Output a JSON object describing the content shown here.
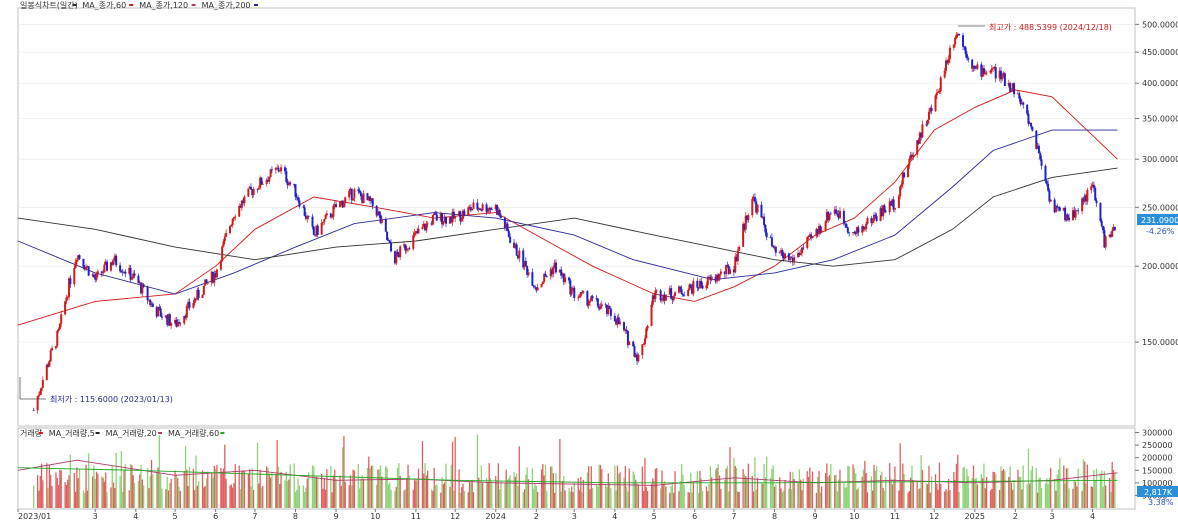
{
  "main_legend": [
    {
      "label": "일봉식차트(일간)",
      "color": "#333333"
    },
    {
      "label": "MA_종가,60",
      "color": "#d11a1a"
    },
    {
      "label": "MA_종가,120",
      "color": "#b03a6a"
    },
    {
      "label": "MA_종가,200",
      "color": "#2a2a99"
    }
  ],
  "volume_legend": [
    {
      "label": "거래량",
      "color": "#d11a1a"
    },
    {
      "label": "MA_거래량,5",
      "color": "#222222"
    },
    {
      "label": "MA_거래량,20",
      "color": "#b03a6a"
    },
    {
      "label": "MA_거래량,60",
      "color": "#22aa22"
    }
  ],
  "annotations": {
    "high_label": "최고가 : 488.5399 (2024/12/18)",
    "low_label": "최저가 : 115.6000 (2023/01/13)"
  },
  "price_badge": {
    "price": "231.0900",
    "change": "-4.26%",
    "bg": "#2a8fd8"
  },
  "volume_badge": {
    "value": "2,817K",
    "pct": "3.38%",
    "bg": "#2a8fd8"
  },
  "colors": {
    "up": "#d11a1a",
    "down": "#2222cc",
    "ma60": "#d11a1a",
    "ma120": "#2a2a99",
    "ma200": "#333333",
    "vol_up": "#e06060",
    "vol_down": "#8fd27a",
    "grid": "#e8e8e8"
  },
  "chart_data": {
    "type": "line",
    "y_scale": "log",
    "price_axis_labels": [
      "500.0000",
      "450.0000",
      "400.0000",
      "350.0000",
      "300.0000",
      "250.0000",
      "200.0000",
      "150.0000"
    ],
    "price_axis_values": [
      500,
      450,
      400,
      350,
      300,
      250,
      200,
      150
    ],
    "ylim": [
      110,
      520
    ],
    "volume_axis_labels": [
      "300000",
      "250000",
      "200000",
      "150000",
      "100000",
      "50000"
    ],
    "volume_axis_values": [
      300000,
      250000,
      200000,
      150000,
      100000,
      50000
    ],
    "volume_ylim": [
      0,
      310000
    ],
    "time_axis_labels": [
      "2023/01",
      "3",
      "4",
      "5",
      "6",
      "7",
      "8",
      "9",
      "10",
      "11",
      "12",
      "2024",
      "2",
      "3",
      "4",
      "5",
      "6",
      "7",
      "8",
      "9",
      "10",
      "11",
      "12",
      "2025",
      "2",
      "3",
      "4"
    ],
    "xlim": [
      "2023-01-01",
      "2025-04-25"
    ],
    "series": [
      {
        "name": "일봉식차트(일간)",
        "dates": [
          "2023-01-13",
          "2023-02-01",
          "2023-02-15",
          "2023-03-01",
          "2023-03-15",
          "2023-04-01",
          "2023-04-15",
          "2023-05-01",
          "2023-05-15",
          "2023-06-01",
          "2023-06-15",
          "2023-07-01",
          "2023-07-20",
          "2023-08-01",
          "2023-08-15",
          "2023-09-01",
          "2023-09-15",
          "2023-10-01",
          "2023-10-15",
          "2023-11-01",
          "2023-11-15",
          "2023-12-01",
          "2023-12-15",
          "2024-01-01",
          "2024-01-15",
          "2024-02-01",
          "2024-02-15",
          "2024-03-01",
          "2024-03-15",
          "2024-04-01",
          "2024-04-20",
          "2024-05-01",
          "2024-05-15",
          "2024-06-01",
          "2024-06-15",
          "2024-07-01",
          "2024-07-15",
          "2024-08-01",
          "2024-08-15",
          "2024-09-01",
          "2024-09-15",
          "2024-10-01",
          "2024-10-15",
          "2024-11-01",
          "2024-11-15",
          "2024-12-01",
          "2024-12-18",
          "2025-01-01",
          "2025-01-15",
          "2025-02-01",
          "2025-02-15",
          "2025-03-01",
          "2025-03-15",
          "2025-04-01",
          "2025-04-10",
          "2025-04-20"
        ],
        "values": [
          116,
          155,
          210,
          190,
          205,
          190,
          170,
          160,
          175,
          195,
          245,
          270,
          290,
          265,
          225,
          250,
          265,
          250,
          205,
          225,
          240,
          240,
          250,
          250,
          215,
          185,
          200,
          180,
          175,
          165,
          140,
          180,
          180,
          185,
          190,
          200,
          260,
          210,
          205,
          225,
          250,
          225,
          240,
          255,
          310,
          370,
          488,
          420,
          420,
          390,
          330,
          250,
          240,
          270,
          220,
          231
        ]
      },
      {
        "name": "MA_종가,60",
        "dates": [
          "2023-01-01",
          "2023-03-01",
          "2023-05-01",
          "2023-06-01",
          "2023-07-01",
          "2023-08-15",
          "2023-10-01",
          "2023-11-15",
          "2024-01-01",
          "2024-02-01",
          "2024-03-15",
          "2024-05-01",
          "2024-06-01",
          "2024-07-01",
          "2024-08-01",
          "2024-09-01",
          "2024-10-01",
          "2024-11-01",
          "2024-12-01",
          "2025-01-01",
          "2025-02-01",
          "2025-03-01",
          "2025-04-20"
        ],
        "values": [
          160,
          175,
          180,
          200,
          230,
          260,
          250,
          240,
          245,
          225,
          200,
          180,
          175,
          185,
          200,
          225,
          240,
          275,
          335,
          365,
          390,
          380,
          300
        ]
      },
      {
        "name": "MA_종가,120",
        "dates": [
          "2023-01-01",
          "2023-03-01",
          "2023-05-01",
          "2023-06-15",
          "2023-08-01",
          "2023-09-15",
          "2023-11-15",
          "2024-01-01",
          "2024-03-01",
          "2024-04-15",
          "2024-06-15",
          "2024-08-01",
          "2024-09-15",
          "2024-11-01",
          "2024-12-15",
          "2025-01-15",
          "2025-03-01",
          "2025-04-20"
        ],
        "values": [
          220,
          195,
          180,
          195,
          215,
          235,
          245,
          240,
          225,
          205,
          190,
          195,
          205,
          225,
          270,
          310,
          335,
          335
        ]
      },
      {
        "name": "MA_종가,200",
        "dates": [
          "2023-01-01",
          "2023-03-01",
          "2023-05-01",
          "2023-07-01",
          "2023-09-01",
          "2023-11-01",
          "2024-01-01",
          "2024-03-01",
          "2024-05-01",
          "2024-06-15",
          "2024-08-01",
          "2024-09-15",
          "2024-11-01",
          "2024-12-15",
          "2025-01-15",
          "2025-03-01",
          "2025-04-20"
        ],
        "values": [
          240,
          230,
          215,
          205,
          215,
          220,
          230,
          240,
          225,
          215,
          205,
          200,
          205,
          230,
          260,
          280,
          290
        ]
      }
    ],
    "volume_series": [
      {
        "name": "MA_거래량,20",
        "dates": [
          "2023-01-01",
          "2023-02-15",
          "2023-05-01",
          "2023-07-01",
          "2023-09-01",
          "2023-11-01",
          "2024-01-01",
          "2024-03-01",
          "2024-05-01",
          "2024-07-01",
          "2024-09-01",
          "2024-11-01",
          "2025-01-01",
          "2025-03-01",
          "2025-04-20"
        ],
        "values": [
          150000,
          190000,
          130000,
          150000,
          110000,
          115000,
          100000,
          95000,
          90000,
          120000,
          100000,
          110000,
          100000,
          110000,
          140000
        ]
      },
      {
        "name": "MA_거래량,60",
        "dates": [
          "2023-01-01",
          "2023-04-01",
          "2023-08-01",
          "2023-12-01",
          "2024-04-01",
          "2024-08-01",
          "2024-12-01",
          "2025-04-20"
        ],
        "values": [
          160000,
          150000,
          130000,
          110000,
          100000,
          100000,
          105000,
          110000
        ]
      }
    ]
  }
}
